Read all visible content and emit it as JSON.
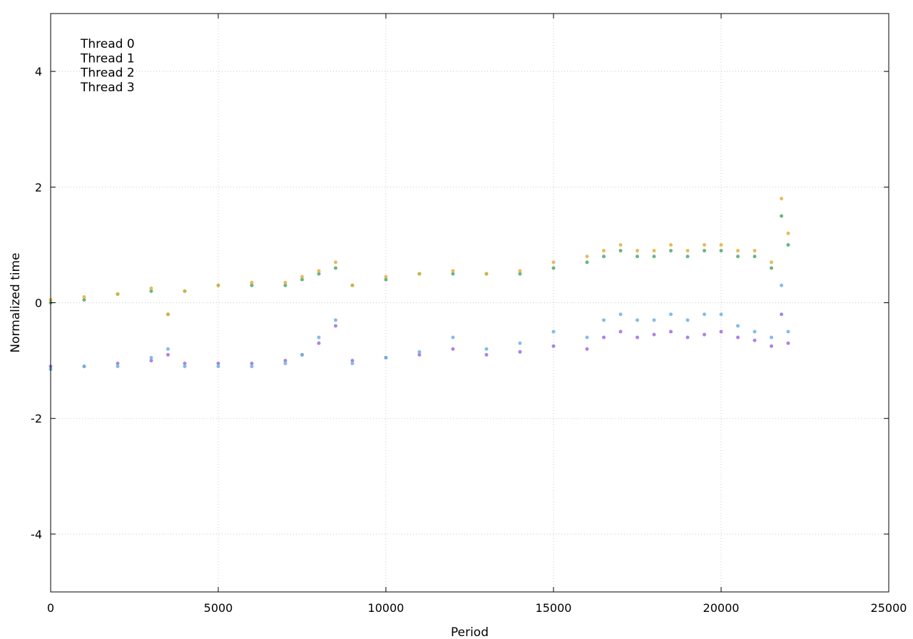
{
  "chart_data": {
    "type": "scatter",
    "title": "",
    "xlabel": "Period",
    "ylabel": "Normalized time",
    "xlim": [
      0,
      25000
    ],
    "ylim": [
      -5,
      5
    ],
    "xticks": [
      0,
      5000,
      10000,
      15000,
      20000,
      25000
    ],
    "yticks": [
      -4,
      -2,
      0,
      2,
      4
    ],
    "grid": true,
    "legend_position": "top-left",
    "series": [
      {
        "name": "Thread 0",
        "color": "#9b6fe0",
        "x": [
          0,
          1000,
          2000,
          3000,
          3500,
          4000,
          5000,
          6000,
          7000,
          7500,
          8000,
          8500,
          9000,
          10000,
          11000,
          12000,
          13000,
          14000,
          15000,
          16000,
          16500,
          17000,
          17500,
          18000,
          18500,
          19000,
          19500,
          20000,
          20500,
          21000,
          21500,
          21800,
          22000
        ],
        "y": [
          -1.1,
          -1.1,
          -1.05,
          -1.0,
          -0.9,
          -1.05,
          -1.05,
          -1.05,
          -1.0,
          -0.9,
          -0.7,
          -0.4,
          -1.0,
          -0.95,
          -0.9,
          -0.8,
          -0.9,
          -0.85,
          -0.75,
          -0.8,
          -0.6,
          -0.5,
          -0.6,
          -0.55,
          -0.5,
          -0.6,
          -0.55,
          -0.5,
          -0.6,
          -0.65,
          -0.75,
          -0.2,
          -0.7
        ]
      },
      {
        "name": "Thread 1",
        "color": "#6fb1e0",
        "x": [
          0,
          1000,
          2000,
          3000,
          3500,
          4000,
          5000,
          6000,
          7000,
          7500,
          8000,
          8500,
          9000,
          10000,
          11000,
          12000,
          13000,
          14000,
          15000,
          16000,
          16500,
          17000,
          17500,
          18000,
          18500,
          19000,
          19500,
          20000,
          20500,
          21000,
          21500,
          21800,
          22000
        ],
        "y": [
          -1.15,
          -1.1,
          -1.1,
          -0.95,
          -0.8,
          -1.1,
          -1.1,
          -1.1,
          -1.05,
          -0.9,
          -0.6,
          -0.3,
          -1.05,
          -0.95,
          -0.85,
          -0.6,
          -0.8,
          -0.7,
          -0.5,
          -0.6,
          -0.3,
          -0.2,
          -0.3,
          -0.3,
          -0.2,
          -0.3,
          -0.2,
          -0.2,
          -0.4,
          -0.5,
          -0.6,
          0.3,
          -0.5
        ]
      },
      {
        "name": "Thread 2",
        "color": "#4fa870",
        "x": [
          0,
          1000,
          2000,
          3000,
          3500,
          4000,
          5000,
          6000,
          7000,
          7500,
          8000,
          8500,
          9000,
          10000,
          11000,
          12000,
          13000,
          14000,
          15000,
          16000,
          16500,
          17000,
          17500,
          18000,
          18500,
          19000,
          19500,
          20000,
          20500,
          21000,
          21500,
          21800,
          22000
        ],
        "y": [
          0.0,
          0.05,
          0.15,
          0.2,
          -0.2,
          0.2,
          0.3,
          0.3,
          0.3,
          0.4,
          0.5,
          0.6,
          0.3,
          0.4,
          0.5,
          0.5,
          0.5,
          0.5,
          0.6,
          0.7,
          0.8,
          0.9,
          0.8,
          0.8,
          0.9,
          0.8,
          0.9,
          0.9,
          0.8,
          0.8,
          0.6,
          1.5,
          1.0
        ]
      },
      {
        "name": "Thread 3",
        "color": "#e0b040",
        "x": [
          0,
          1000,
          2000,
          3000,
          3500,
          4000,
          5000,
          6000,
          7000,
          7500,
          8000,
          8500,
          9000,
          10000,
          11000,
          12000,
          13000,
          14000,
          15000,
          16000,
          16500,
          17000,
          17500,
          18000,
          18500,
          19000,
          19500,
          20000,
          20500,
          21000,
          21500,
          21800,
          22000
        ],
        "y": [
          0.05,
          0.1,
          0.15,
          0.25,
          -0.2,
          0.2,
          0.3,
          0.35,
          0.35,
          0.45,
          0.55,
          0.7,
          0.3,
          0.45,
          0.5,
          0.55,
          0.5,
          0.55,
          0.7,
          0.8,
          0.9,
          1.0,
          0.9,
          0.9,
          1.0,
          0.9,
          1.0,
          1.0,
          0.9,
          0.9,
          0.7,
          1.8,
          1.2
        ]
      }
    ]
  }
}
